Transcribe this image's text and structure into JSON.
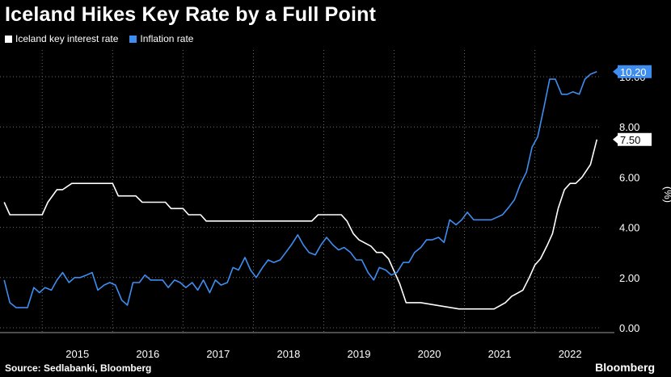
{
  "title": "Iceland Hikes Key Rate by a Full Point",
  "source": "Source: Sedlabanki, Bloomberg",
  "brand": "Bloomberg",
  "chart_data": {
    "type": "line",
    "title": "Iceland Hikes Key Rate by a Full Point",
    "ylabel": "(%)",
    "ylim": [
      0,
      10.5
    ],
    "xlim": [
      2014.4,
      2022.9
    ],
    "y_ticks": [
      "0.00",
      "2.00",
      "4.00",
      "6.00",
      "8.00",
      "10.00"
    ],
    "x_ticks": [
      "2015",
      "2016",
      "2017",
      "2018",
      "2019",
      "2020",
      "2021",
      "2022"
    ],
    "grid": true,
    "legend_position": "top-left",
    "series": [
      {
        "name": "Iceland key interest rate",
        "color": "#ffffff",
        "end_label": "7.50",
        "x": [
          2014.46,
          2014.54,
          2015.0,
          2015.08,
          2015.21,
          2015.29,
          2015.42,
          2015.5,
          2016.0,
          2016.08,
          2016.33,
          2016.42,
          2016.75,
          2016.83,
          2017.0,
          2017.08,
          2017.25,
          2017.33,
          2017.75,
          2017.83,
          2018.0,
          2018.08,
          2018.83,
          2018.92,
          2019.25,
          2019.33,
          2019.42,
          2019.5,
          2019.67,
          2019.75,
          2019.83,
          2019.92,
          2020.08,
          2020.17,
          2020.29,
          2020.38,
          2020.92,
          2021.0,
          2021.33,
          2021.42,
          2021.58,
          2021.67,
          2021.83,
          2021.92,
          2022.0,
          2022.08,
          2022.17,
          2022.25,
          2022.33,
          2022.42,
          2022.5,
          2022.58,
          2022.67,
          2022.79,
          2022.88
        ],
        "values": [
          5.0,
          4.5,
          4.5,
          5.0,
          5.5,
          5.5,
          5.75,
          5.75,
          5.75,
          5.25,
          5.25,
          5.0,
          5.0,
          4.75,
          4.75,
          4.5,
          4.5,
          4.25,
          4.25,
          4.25,
          4.25,
          4.25,
          4.25,
          4.5,
          4.5,
          4.25,
          3.75,
          3.5,
          3.25,
          3.0,
          3.0,
          2.75,
          1.75,
          1.0,
          1.0,
          1.0,
          0.75,
          0.75,
          0.75,
          0.75,
          1.0,
          1.25,
          1.5,
          2.0,
          2.5,
          2.75,
          3.25,
          3.75,
          4.75,
          5.5,
          5.75,
          5.75,
          6.0,
          6.5,
          7.5
        ]
      },
      {
        "name": "Inflation rate",
        "color": "#3d8ef0",
        "end_label": "10.20",
        "x": [
          2014.46,
          2014.54,
          2014.63,
          2014.71,
          2014.79,
          2014.88,
          2014.96,
          2015.04,
          2015.13,
          2015.21,
          2015.29,
          2015.38,
          2015.46,
          2015.54,
          2015.63,
          2015.71,
          2015.79,
          2015.88,
          2015.96,
          2016.04,
          2016.13,
          2016.21,
          2016.29,
          2016.38,
          2016.46,
          2016.54,
          2016.63,
          2016.71,
          2016.79,
          2016.88,
          2016.96,
          2017.04,
          2017.13,
          2017.21,
          2017.29,
          2017.38,
          2017.46,
          2017.54,
          2017.63,
          2017.71,
          2017.79,
          2017.88,
          2017.96,
          2018.04,
          2018.13,
          2018.21,
          2018.29,
          2018.38,
          2018.46,
          2018.54,
          2018.63,
          2018.71,
          2018.79,
          2018.88,
          2018.96,
          2019.04,
          2019.13,
          2019.21,
          2019.29,
          2019.38,
          2019.46,
          2019.54,
          2019.63,
          2019.71,
          2019.79,
          2019.88,
          2019.96,
          2020.04,
          2020.13,
          2020.21,
          2020.29,
          2020.38,
          2020.46,
          2020.54,
          2020.63,
          2020.71,
          2020.79,
          2020.88,
          2020.96,
          2021.04,
          2021.13,
          2021.21,
          2021.29,
          2021.38,
          2021.46,
          2021.54,
          2021.63,
          2021.71,
          2021.79,
          2021.88,
          2021.96,
          2022.04,
          2022.13,
          2022.21,
          2022.29,
          2022.38,
          2022.46,
          2022.54,
          2022.63,
          2022.71,
          2022.79,
          2022.88
        ],
        "values": [
          1.9,
          1.0,
          0.8,
          0.8,
          0.8,
          1.6,
          1.4,
          1.6,
          1.5,
          1.9,
          2.2,
          1.8,
          2.0,
          2.0,
          2.1,
          2.2,
          1.5,
          1.7,
          1.8,
          1.7,
          1.1,
          0.9,
          1.8,
          1.8,
          2.1,
          1.9,
          1.9,
          1.9,
          1.6,
          1.9,
          1.8,
          1.6,
          1.8,
          1.5,
          1.9,
          1.4,
          1.9,
          1.7,
          1.8,
          2.4,
          2.3,
          2.8,
          2.3,
          2.0,
          2.4,
          2.7,
          2.6,
          2.7,
          3.0,
          3.3,
          3.7,
          3.3,
          3.0,
          2.9,
          3.3,
          3.6,
          3.3,
          3.1,
          3.2,
          3.0,
          2.7,
          2.7,
          2.2,
          1.9,
          2.4,
          2.3,
          2.1,
          2.2,
          2.6,
          2.6,
          3.0,
          3.2,
          3.5,
          3.5,
          3.6,
          3.4,
          4.3,
          4.1,
          4.3,
          4.6,
          4.3,
          4.3,
          4.3,
          4.3,
          4.4,
          4.5,
          4.8,
          5.1,
          5.7,
          6.2,
          7.2,
          7.6,
          8.8,
          9.9,
          9.9,
          9.3,
          9.3,
          9.4,
          9.3,
          9.9,
          10.1,
          10.2
        ]
      }
    ]
  }
}
